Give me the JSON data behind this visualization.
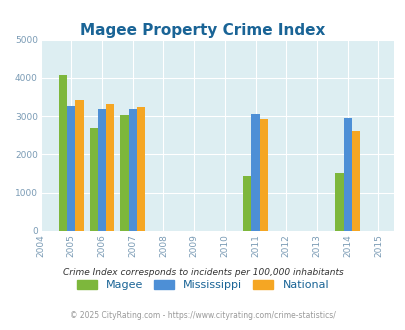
{
  "title": "Magee Property Crime Index",
  "years": [
    2005,
    2006,
    2007,
    2011,
    2014
  ],
  "magee": [
    4080,
    2700,
    3030,
    1430,
    1510
  ],
  "mississippi": [
    3260,
    3200,
    3200,
    3050,
    2960
  ],
  "national": [
    3430,
    3330,
    3230,
    2920,
    2600
  ],
  "magee_color": "#7db73c",
  "mississippi_color": "#4d8fd6",
  "national_color": "#f5a623",
  "bg_color": "#ddeef2",
  "title_color": "#1a6496",
  "axis_label_color": "#7a9bb5",
  "ylim": [
    0,
    5000
  ],
  "xlim_min": 2004.5,
  "xlim_max": 2015.5,
  "xticks": [
    2004,
    2005,
    2006,
    2007,
    2008,
    2009,
    2010,
    2011,
    2012,
    2013,
    2014,
    2015
  ],
  "yticks": [
    0,
    1000,
    2000,
    3000,
    4000,
    5000
  ],
  "legend_labels": [
    "Magee",
    "Mississippi",
    "National"
  ],
  "footnote1": "Crime Index corresponds to incidents per 100,000 inhabitants",
  "footnote2": "© 2025 CityRating.com - https://www.cityrating.com/crime-statistics/",
  "bar_width": 0.27,
  "grid_color": "#ffffff",
  "outer_bg": "#ffffff"
}
